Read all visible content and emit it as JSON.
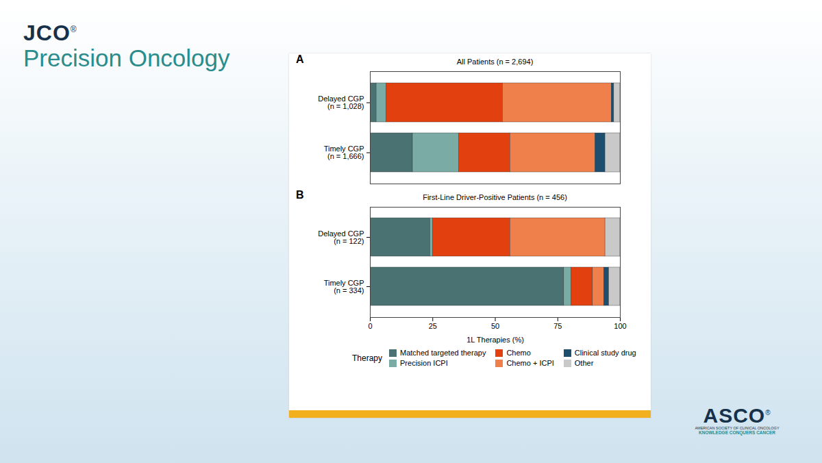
{
  "header": {
    "journal": "JCO",
    "journal_mark": "®",
    "name": "Precision Oncology"
  },
  "footer": {
    "logo": "ASCO",
    "logo_mark": "®",
    "line1": "AMERICAN SOCIETY OF CLINICAL ONCOLOGY",
    "line2": "KNOWLEDGE CONQUERS CANCER"
  },
  "chart_data": [
    {
      "type": "bar",
      "annotations": [
        "A"
      ],
      "title": "All Patients (n = 2,694)",
      "orientation": "horizontal",
      "stacked": true,
      "categories": [
        "Delayed CGP\n(n = 1,028)",
        "Timely CGP\n(n = 1,666)"
      ],
      "series": [
        {
          "name": "Matched targeted therapy",
          "color": "#4b7272",
          "values": [
            2.5,
            17
          ]
        },
        {
          "name": "Precision ICPI",
          "color": "#7aaba5",
          "values": [
            4,
            18.5
          ]
        },
        {
          "name": "Chemo",
          "color": "#e2410f",
          "values": [
            46.5,
            20.5
          ]
        },
        {
          "name": "Chemo + ICPI",
          "color": "#ef7f4b",
          "values": [
            43.5,
            34
          ]
        },
        {
          "name": "Clinical study drug",
          "color": "#1d4e6d",
          "values": [
            1,
            4
          ]
        },
        {
          "name": "Other",
          "color": "#c9c9c9",
          "values": [
            2.5,
            6
          ]
        }
      ],
      "xlim": [
        0,
        100
      ],
      "tick_labels": "y"
    },
    {
      "type": "bar",
      "annotations": [
        "B"
      ],
      "title": "First-Line Driver-Positive Patients (n = 456)",
      "orientation": "horizontal",
      "stacked": true,
      "categories": [
        "Delayed CGP\n(n = 122)",
        "Timely CGP\n(n = 334)"
      ],
      "series": [
        {
          "name": "Matched targeted therapy",
          "color": "#4b7272",
          "values": [
            24,
            77.5
          ]
        },
        {
          "name": "Precision ICPI",
          "color": "#7aaba5",
          "values": [
            1,
            3
          ]
        },
        {
          "name": "Chemo",
          "color": "#e2410f",
          "values": [
            31,
            8.5
          ]
        },
        {
          "name": "Chemo + ICPI",
          "color": "#ef7f4b",
          "values": [
            38,
            4.5
          ]
        },
        {
          "name": "Clinical study drug",
          "color": "#1d4e6d",
          "values": [
            0,
            2
          ]
        },
        {
          "name": "Other",
          "color": "#c9c9c9",
          "values": [
            6,
            4.5
          ]
        }
      ],
      "xlim": [
        0,
        100
      ],
      "xticks": [
        0,
        25,
        50,
        75,
        100
      ],
      "x_label": "1L Therapies (%)",
      "legend": "bottom",
      "legend_title": "Therapy"
    }
  ]
}
